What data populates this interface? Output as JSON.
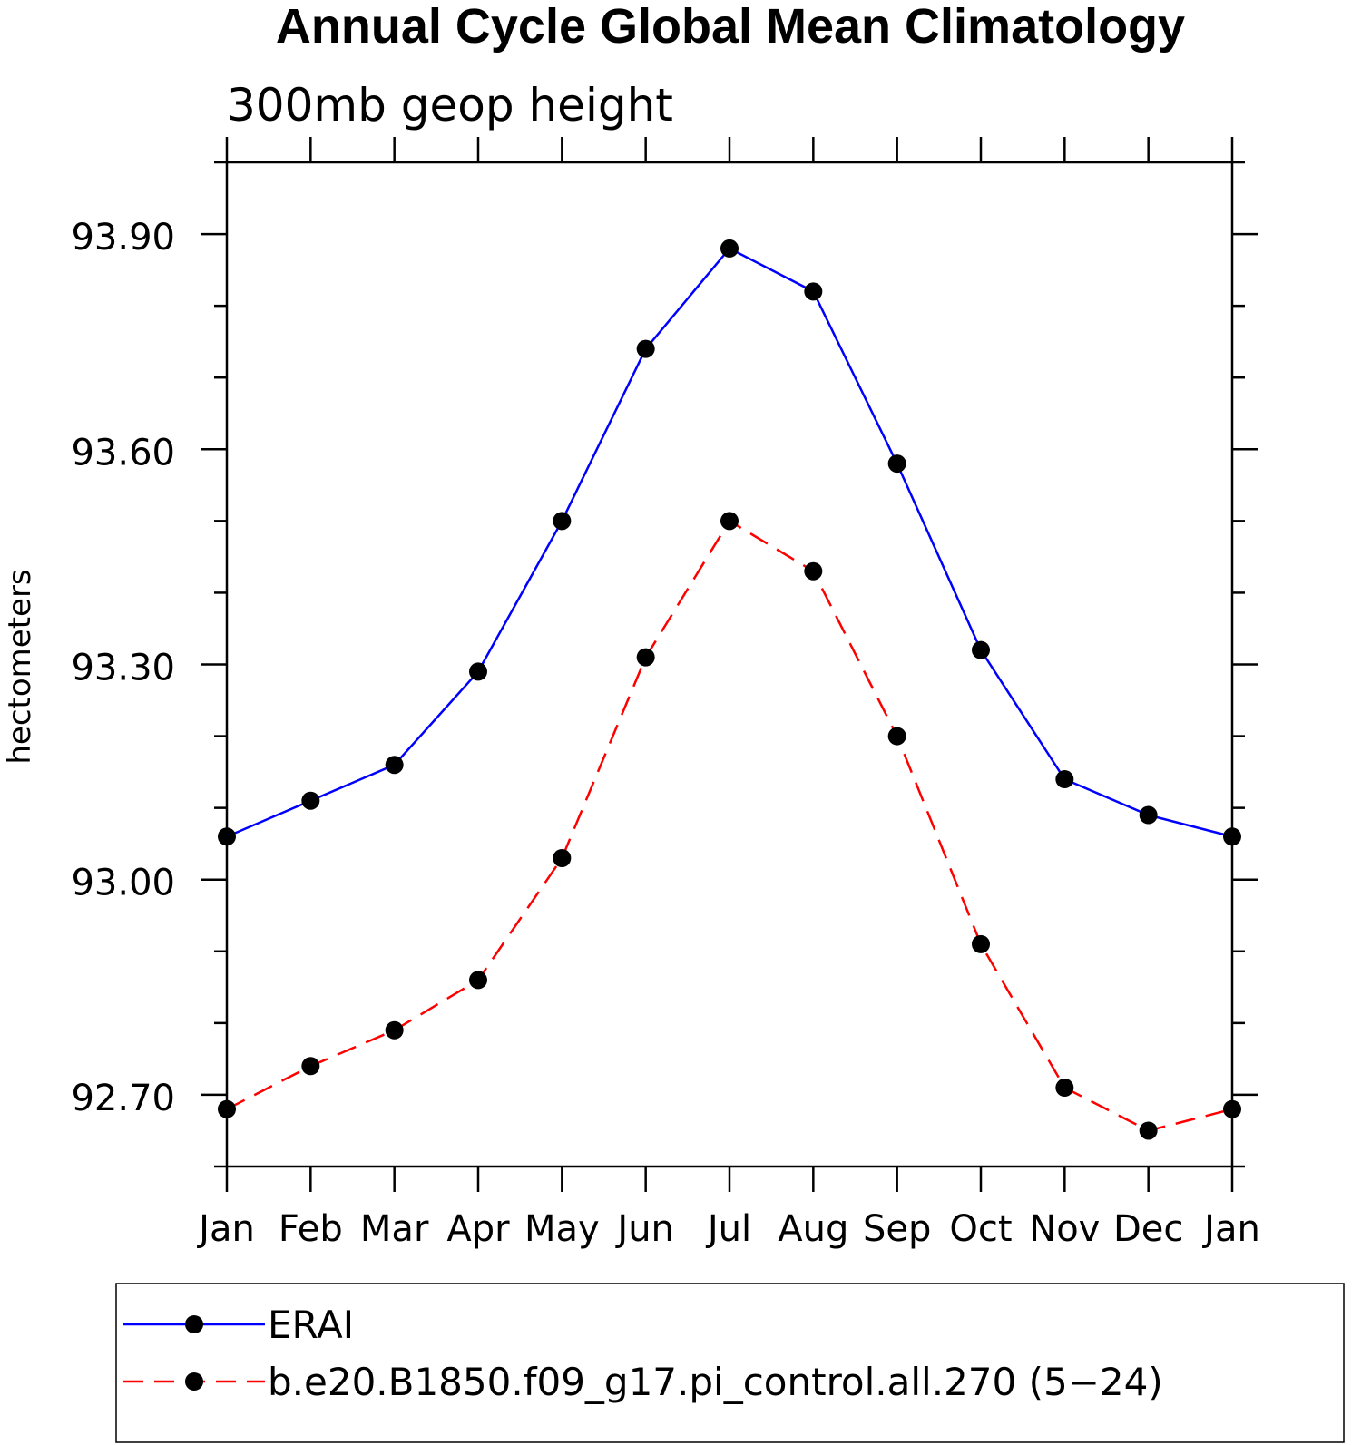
{
  "chart_data": {
    "type": "line",
    "title": "Annual Cycle Global Mean Climatology",
    "subtitle": "300mb geop height",
    "ylabel": "hectometers",
    "xlabel": "",
    "categories": [
      "Jan",
      "Feb",
      "Mar",
      "Apr",
      "May",
      "Jun",
      "Jul",
      "Aug",
      "Sep",
      "Oct",
      "Nov",
      "Dec",
      "Jan"
    ],
    "ylim": [
      92.6,
      94.0
    ],
    "yticks_major": [
      "93.90",
      "93.60",
      "93.30",
      "93.00",
      "92.70"
    ],
    "grid": false,
    "legend_position": "bottom",
    "series": [
      {
        "name": "ERAI",
        "color": "#0000ff",
        "line_style": "solid",
        "marker": "filled-circle",
        "values": [
          93.06,
          93.11,
          93.16,
          93.29,
          93.5,
          93.74,
          93.88,
          93.82,
          93.58,
          93.32,
          93.14,
          93.09,
          93.06
        ]
      },
      {
        "name": "b.e20.B1850.f09_g17.pi_control.all.270 (5−24)",
        "color": "#ff0000",
        "line_style": "dashed",
        "marker": "filled-circle",
        "values": [
          92.68,
          92.74,
          92.79,
          92.86,
          93.03,
          93.31,
          93.5,
          93.43,
          93.2,
          92.91,
          92.71,
          92.65,
          92.68
        ]
      }
    ]
  }
}
